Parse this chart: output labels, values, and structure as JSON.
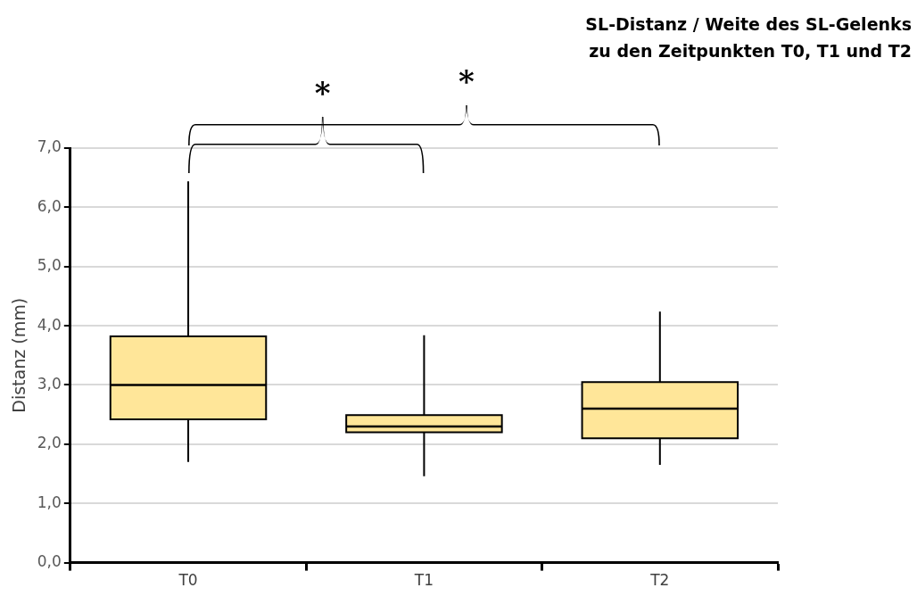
{
  "chart_data": {
    "type": "box",
    "title": "SL-Distanz / Weite des SL-Gelenks zu den Zeitpunkten T0, T1 und T2",
    "ylabel": "Distanz (mm)",
    "categories": [
      "T0",
      "T1",
      "T2"
    ],
    "color": "#ffe699",
    "boxes": [
      {
        "low": 1.7,
        "q1": 2.42,
        "median": 3.0,
        "q3": 3.82,
        "high": 6.44
      },
      {
        "low": 1.46,
        "q1": 2.2,
        "median": 2.3,
        "q3": 2.49,
        "high": 3.84
      },
      {
        "low": 1.65,
        "q1": 2.1,
        "median": 2.6,
        "q3": 3.05,
        "high": 4.24
      }
    ],
    "ylim": [
      0,
      7
    ],
    "yticks": [
      {
        "value": 0,
        "label": "0,0"
      },
      {
        "value": 1,
        "label": "1,0"
      },
      {
        "value": 2,
        "label": "2,0"
      },
      {
        "value": 3,
        "label": "3,0"
      },
      {
        "value": 4,
        "label": "4,0"
      },
      {
        "value": 5,
        "label": "5,0"
      },
      {
        "value": 6,
        "label": "6,0"
      },
      {
        "value": 7,
        "label": "7,0"
      }
    ],
    "grid": "y",
    "annotations": [
      "*",
      "*"
    ]
  }
}
